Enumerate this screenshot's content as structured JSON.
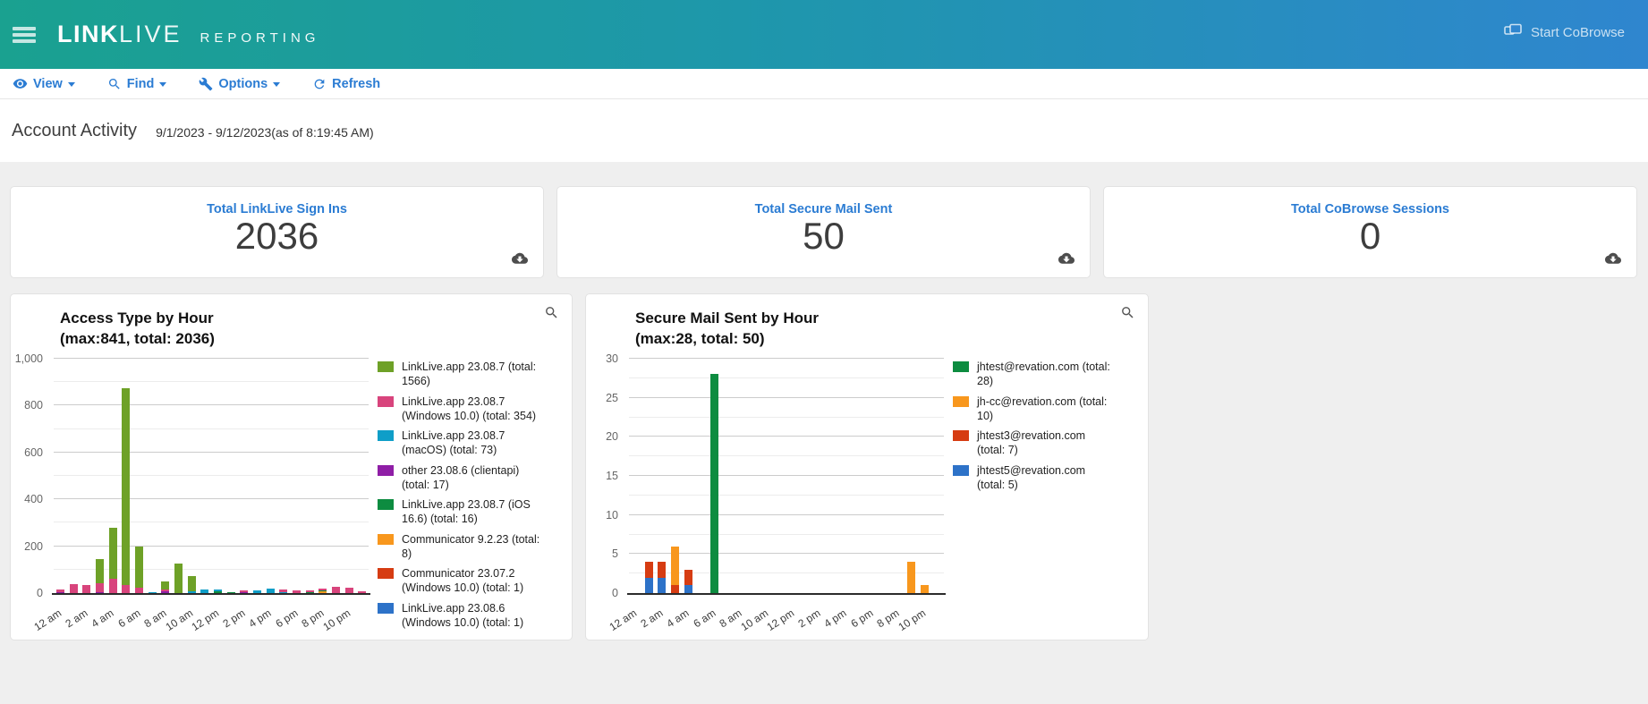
{
  "header": {
    "brand_bold": "LINK",
    "brand_light": "LIVE",
    "brand_suffix": "REPORTING",
    "start_cobrowse_label": "Start CoBrowse",
    "gradient_left": "#1aa190",
    "gradient_right": "#2f86cf"
  },
  "toolbar": {
    "view_label": "View",
    "find_label": "Find",
    "options_label": "Options",
    "refresh_label": "Refresh",
    "link_color": "#2b7cd3"
  },
  "page": {
    "title": "Account Activity",
    "date_range": "9/1/2023 - 9/12/2023(as of 8:19:45 AM)"
  },
  "summary_cards": [
    {
      "title": "Total LinkLive Sign Ins",
      "value": "2036"
    },
    {
      "title": "Total Secure Mail Sent",
      "value": "50"
    },
    {
      "title": "Total CoBrowse Sessions",
      "value": "0"
    }
  ],
  "chart_data": [
    {
      "type": "bar",
      "stacked": true,
      "title": "Access Type by Hour",
      "subtitle": "(max:841, total: 2036)",
      "categories": [
        "12 am",
        "1 am",
        "2 am",
        "3 am",
        "4 am",
        "5 am",
        "6 am",
        "7 am",
        "8 am",
        "9 am",
        "10 am",
        "11 am",
        "12 pm",
        "1 pm",
        "2 pm",
        "3 pm",
        "4 pm",
        "5 pm",
        "6 pm",
        "7 pm",
        "8 pm",
        "9 pm",
        "10 pm",
        "11 pm"
      ],
      "x_tick_every": 2,
      "ylim": [
        0,
        1000
      ],
      "y_major_step": 200,
      "y_minor_step": 100,
      "grid": true,
      "legend_position": "right",
      "series": [
        {
          "name": "LinkLive.app 23.08.7 (total: 1566)",
          "color": "#6ea127",
          "values": [
            0,
            0,
            0,
            105,
            218,
            841,
            177,
            0,
            35,
            125,
            65,
            0,
            0,
            0,
            0,
            0,
            0,
            0,
            0,
            0,
            0,
            0,
            0,
            0
          ]
        },
        {
          "name": "LinkLive.app 23.08.7 (Windows 10.0) (total: 354)",
          "color": "#d8447c",
          "values": [
            12,
            40,
            35,
            36,
            60,
            35,
            22,
            0,
            8,
            0,
            0,
            0,
            0,
            0,
            8,
            0,
            0,
            10,
            10,
            8,
            10,
            28,
            24,
            8
          ]
        },
        {
          "name": "LinkLive.app 23.08.7 (macOS) (total: 73)",
          "color": "#0f9ec8",
          "values": [
            0,
            0,
            0,
            0,
            0,
            0,
            0,
            5,
            0,
            0,
            8,
            16,
            8,
            0,
            0,
            12,
            19,
            5,
            0,
            0,
            0,
            0,
            0,
            0
          ]
        },
        {
          "name": "other 23.08.6 (clientapi) (total: 17)",
          "color": "#8f1ea6",
          "values": [
            2,
            0,
            0,
            5,
            0,
            0,
            0,
            0,
            8,
            0,
            0,
            0,
            0,
            0,
            2,
            0,
            0,
            0,
            0,
            0,
            0,
            0,
            0,
            0
          ]
        },
        {
          "name": "LinkLive.app 23.08.7 (iOS 16.6) (total: 16)",
          "color": "#0d8c40",
          "values": [
            0,
            0,
            0,
            0,
            0,
            0,
            0,
            0,
            0,
            0,
            0,
            0,
            8,
            3,
            0,
            0,
            0,
            0,
            0,
            2,
            3,
            0,
            0,
            0
          ]
        },
        {
          "name": "Communicator 9.2.23 (total: 8)",
          "color": "#f8971d",
          "values": [
            0,
            0,
            0,
            0,
            0,
            0,
            0,
            0,
            0,
            0,
            0,
            0,
            0,
            0,
            0,
            0,
            0,
            0,
            0,
            0,
            8,
            0,
            0,
            0
          ]
        },
        {
          "name": "Communicator 23.07.2 (Windows 10.0) (total: 1)",
          "color": "#d63c12",
          "values": [
            0,
            0,
            0,
            0,
            1,
            0,
            0,
            0,
            0,
            0,
            0,
            0,
            0,
            0,
            0,
            0,
            0,
            0,
            0,
            0,
            0,
            0,
            0,
            0
          ]
        },
        {
          "name": "LinkLive.app 23.08.6 (Windows 10.0) (total: 1)",
          "color": "#2d72c8",
          "values": [
            0,
            0,
            0,
            0,
            0,
            0,
            1,
            0,
            0,
            0,
            0,
            0,
            0,
            0,
            0,
            0,
            0,
            0,
            0,
            0,
            0,
            0,
            0,
            0
          ]
        }
      ]
    },
    {
      "type": "bar",
      "stacked": true,
      "title": "Secure Mail Sent by Hour",
      "subtitle": "(max:28, total: 50)",
      "categories": [
        "12 am",
        "1 am",
        "2 am",
        "3 am",
        "4 am",
        "5 am",
        "6 am",
        "7 am",
        "8 am",
        "9 am",
        "10 am",
        "11 am",
        "12 pm",
        "1 pm",
        "2 pm",
        "3 pm",
        "4 pm",
        "5 pm",
        "6 pm",
        "7 pm",
        "8 pm",
        "9 pm",
        "10 pm",
        "11 pm"
      ],
      "x_tick_every": 2,
      "ylim": [
        0,
        30
      ],
      "y_major_step": 5,
      "y_minor_step": 2.5,
      "grid": true,
      "legend_position": "right",
      "series": [
        {
          "name": "jhtest@revation.com (total: 28)",
          "color": "#0d8c40",
          "values": [
            0,
            0,
            0,
            0,
            0,
            0,
            28,
            0,
            0,
            0,
            0,
            0,
            0,
            0,
            0,
            0,
            0,
            0,
            0,
            0,
            0,
            0,
            0,
            0
          ]
        },
        {
          "name": "jh-cc@revation.com (total: 10)",
          "color": "#f8971d",
          "values": [
            0,
            0,
            0,
            5,
            0,
            0,
            0,
            0,
            0,
            0,
            0,
            0,
            0,
            0,
            0,
            0,
            0,
            0,
            0,
            0,
            0,
            4,
            1,
            0
          ]
        },
        {
          "name": "jhtest3@revation.com (total: 7)",
          "color": "#d63c12",
          "values": [
            0,
            2,
            2,
            1,
            2,
            0,
            0,
            0,
            0,
            0,
            0,
            0,
            0,
            0,
            0,
            0,
            0,
            0,
            0,
            0,
            0,
            0,
            0,
            0
          ]
        },
        {
          "name": "jhtest5@revation.com (total: 5)",
          "color": "#2d72c8",
          "values": [
            0,
            2,
            2,
            0,
            1,
            0,
            0,
            0,
            0,
            0,
            0,
            0,
            0,
            0,
            0,
            0,
            0,
            0,
            0,
            0,
            0,
            0,
            0,
            0
          ]
        }
      ]
    }
  ]
}
